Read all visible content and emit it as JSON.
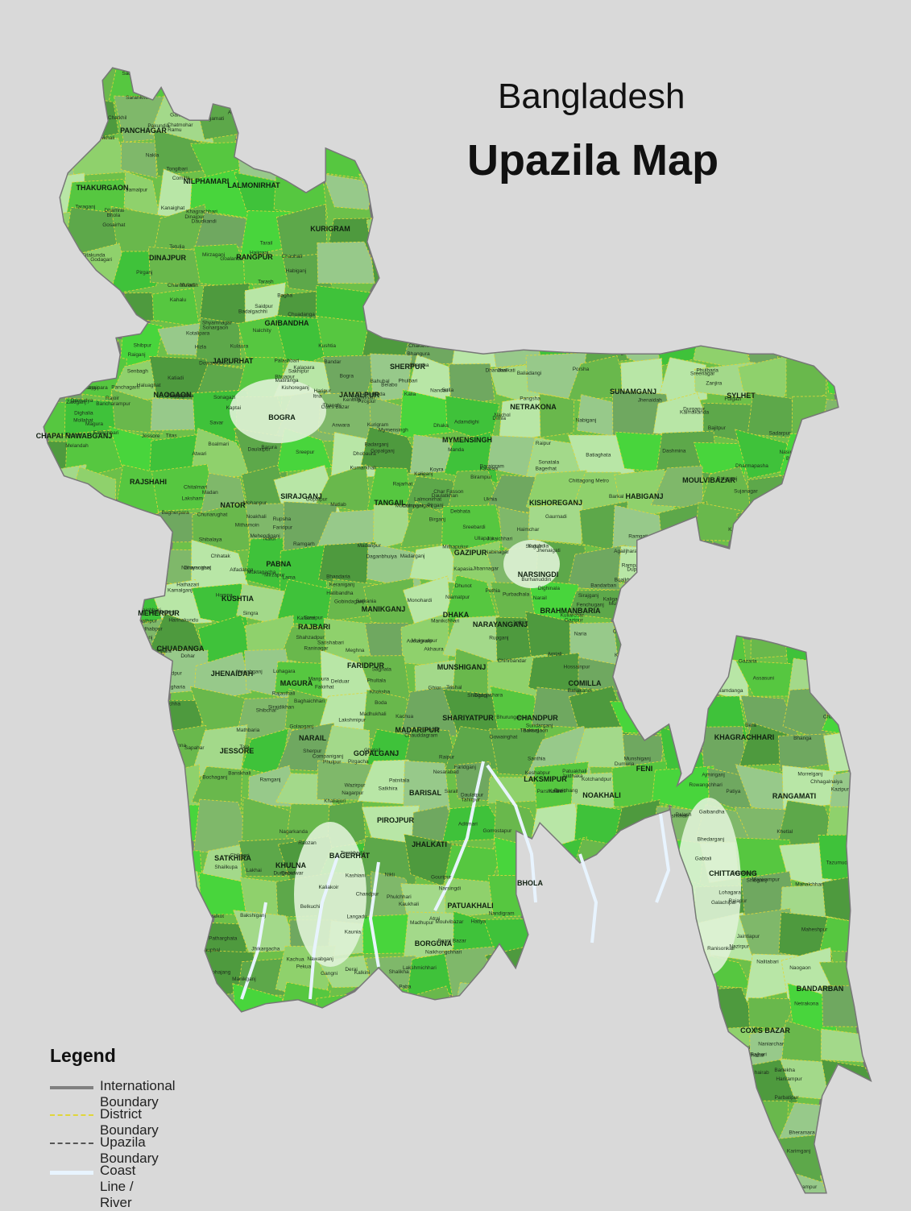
{
  "title": {
    "line1": "Bangladesh",
    "line2": "Upazila Map"
  },
  "legend": {
    "title": "Legend",
    "items": [
      {
        "label": "International Boundary",
        "color": "#808080"
      },
      {
        "label": "District Boundary",
        "color": "#e0d63a"
      },
      {
        "label": "Upazila Boundary",
        "color": "#555555"
      },
      {
        "label": "Coast Line / River",
        "color": "#e8f4ff"
      }
    ]
  },
  "colors": {
    "background": "#d9d9d9",
    "land_dark": "#4a9a3c",
    "land_mid": "#6cc04a",
    "land_light": "#a8e08a",
    "land_bright": "#39d33a",
    "coast": "#e8f4ff"
  },
  "districts": [
    "PANCHAGAR",
    "THAKURGAON",
    "DINAJPUR",
    "NILPHAMARI",
    "LALMONIRHAT",
    "KURIGRAM",
    "RANGPUR",
    "GAIBANDHA",
    "JAIPURHAT",
    "NAOGAON",
    "BOGRA",
    "JAMALPUR",
    "SHERPUR",
    "NETRAKONA",
    "SUNAMGANJ",
    "SYLHET",
    "CHAPAI NAWABGANJ",
    "RAJSHAHI",
    "NATOR",
    "SIRAJGANJ",
    "TANGAIL",
    "MYMENSINGH",
    "KISHOREGANJ",
    "HABIGANJ",
    "MOULVIBAZAR",
    "PABNA",
    "GAZIPUR",
    "NARSINGDI",
    "KUSHTIA",
    "MEHERPUR",
    "RAJBARI",
    "MANIKGANJ",
    "DHAKA",
    "NARAYANGANJ",
    "BRAHMANBARIA",
    "CHUADANGA",
    "JHENAIDAH",
    "MAGURA",
    "FARIDPUR",
    "MUNSHIGANJ",
    "COMILLA",
    "SHARIYATPUR",
    "CHANDPUR",
    "MADARIPUR",
    "NARAIL",
    "JESSORE",
    "GOPALGANJ",
    "KHAGRACHHARI",
    "FENI",
    "LAKSMIPUR",
    "NOAKHALI",
    "BARISAL",
    "PIROJPUR",
    "JHALKATI",
    "BAGERHAT",
    "SATKHIRA",
    "KHULNA",
    "RANGAMATI",
    "BHOLA",
    "PATUAKHALI",
    "BORGUNA",
    "CHITTAGONG",
    "BANDARBAN",
    "COX'S BAZAR"
  ],
  "upazilas": [
    "Tetulia",
    "Panchagarh",
    "Atwari",
    "Boda",
    "Debiganj",
    "Baliadangi",
    "Thakurgaon",
    "Ranisonkail",
    "Pirganj",
    "Haripur",
    "Birganj",
    "Kaharol",
    "Bochaganj",
    "Biral",
    "Chirirbandar",
    "Parbatipur",
    "Dinajpur",
    "Phulbari",
    "Birampur",
    "Nawabganj",
    "Domar",
    "Dimla",
    "Jaldhaka",
    "Nilphamari",
    "Saidpur",
    "Kishoreganj",
    "Hatibandha",
    "Kaliganj",
    "Aditmari",
    "Lalmonirhat",
    "Bhurungamari",
    "Nageshwari",
    "Phulbari",
    "Kurigram",
    "Rajarhat",
    "Ulipur",
    "Chilmari",
    "Rowmari",
    "Gangachara",
    "Rangpur",
    "Taraganj",
    "Badarganj",
    "Mithapukur",
    "Pirgacha",
    "Kaunia",
    "Pirganj",
    "Sundarganj",
    "Gaibandha",
    "Sadullapur",
    "Palashbari",
    "Gobindaganj",
    "Saghata",
    "Phulchhari",
    "Panchbibi",
    "Joypurhat",
    "Khetlal",
    "Akkelpur",
    "Kalai",
    "Dhamoirhat",
    "Sapahar",
    "Patnitala",
    "Porsha",
    "Niamatpur",
    "Naogaon",
    "Badalgachhi",
    "Mohadebpur",
    "Manda",
    "Raninagar",
    "Atrai",
    "Sonatala",
    "Shibganj",
    "Gabtali",
    "Kahalu",
    "Bogra",
    "Dhunot",
    "Sherpur",
    "Nandigram",
    "Adamdighi",
    "Dupchanchia",
    "Islampur",
    "Jamalpur",
    "Melandah",
    "Madarganj",
    "Sarishabari",
    "Bakshiganj",
    "Sreebardi",
    "Jhenaigati",
    "Nalitabari",
    "Nakla",
    "Haluaghat",
    "Dhobaura",
    "Phulpur",
    "Durgapur",
    "Kalmakanda",
    "Purbadhala",
    "Netrakona",
    "Atpara",
    "Kendua",
    "Madan",
    "Mohanganj",
    "Khaliajuri",
    "Dharmapasha",
    "Tahirpur",
    "Jamalganj",
    "Sunamganj",
    "Dowarabazar",
    "Chhatak",
    "Jagannathpur",
    "Derai",
    "Sulla",
    "Gowainghat",
    "Jaintiapur",
    "Kanaighat",
    "Zakiganj",
    "Companiganj",
    "Golapganj",
    "Beani Bazar",
    "Balaganj",
    "Fenchuganj",
    "Barlekha",
    "Kulaura",
    "Rajnagar",
    "Kamalganj",
    "Sreemangal",
    "Moulvibazar",
    "Nabiganj",
    "Baniyachang",
    "Ajmiriganj",
    "Habiganj",
    "Bahubal",
    "Chunarughat",
    "Madhabpur",
    "Lakhai",
    "Nasirnagar",
    "Sarail",
    "Brahmanbaria",
    "Kasba",
    "Bancharampur",
    "Nabinagar",
    "Akhaura",
    "Gomostapur",
    "Nachol",
    "Bholahat",
    "Shibganj",
    "Godagari",
    "Tanore",
    "Mohanpur",
    "Bagmara",
    "Paba",
    "Durgapur",
    "Puthia",
    "Charghat",
    "Bagha",
    "Boalia",
    "Nator",
    "Singra",
    "Gurudaspur",
    "Baraigram",
    "Lalpur",
    "Bagatipara",
    "Tarash",
    "Raiganj",
    "Ullapara",
    "Shahzadpur",
    "Belkuchi",
    "Kamarkhanda",
    "Sirajganj",
    "Kazipur",
    "Chauhali",
    "Bhuapur",
    "Gopalpur",
    "Ghatail",
    "Madhupur",
    "Dhanbari",
    "Kalihati",
    "Tangail",
    "Basail",
    "Sakhipur",
    "Mirzapur",
    "Delduar",
    "Nagarpur",
    "Phulbaria",
    "Trishal",
    "Bhaluka",
    "Gafargaon",
    "Mymensingh",
    "Muktagacha",
    "Ishwarganj",
    "Gouripur",
    "Nandail",
    "Hossainpur",
    "Karimganj",
    "Tarail",
    "Itna",
    "Mithamoin",
    "Austagram",
    "Nikli",
    "Bajitpur",
    "Kuliarchar",
    "Bhairab",
    "Pakundia",
    "Katiadi",
    "Kapasia",
    "Sreepur",
    "Kaliakoir",
    "Kaliganj",
    "Gazipur",
    "Palash",
    "Shibpur",
    "Belabo",
    "Monohardi",
    "Raipur",
    "Narsingdi",
    "Sujanagar",
    "Santhia",
    "Bera",
    "Chatmohar",
    "Bhangura",
    "Faridpur",
    "Atgharia",
    "Ishwardi",
    "Pabna",
    "Daulatpur",
    "Bheramara",
    "Mirpur",
    "Kushtia",
    "Kumarkhali",
    "Khoksha",
    "Gangni",
    "Meherpur",
    "Mujibnagar",
    "Alamdanga",
    "Chuadanga",
    "Damurhuda",
    "Jibannagar",
    "Harinakundu",
    "Shailkupa",
    "Jhenaidah",
    "Kotchandpur",
    "Maheshpur",
    "Kaliganj",
    "Magura",
    "Sreepur",
    "Mohammadpur",
    "Shalikha",
    "Pangsha",
    "Baliakandi",
    "Rajbari",
    "Goalanda",
    "Daulatpur",
    "Shibalaya",
    "Ghior",
    "Manikganj",
    "Saturia",
    "Singair",
    "Harirampur",
    "Dhamrai",
    "Savar",
    "Keraniganj",
    "Dohar",
    "Nawabganj",
    "Dhaka",
    "Rupganj",
    "Araihazar",
    "Sonargaon",
    "Bandar",
    "Narayanganj",
    "Sirajdikhan",
    "Lohajang",
    "Sreenagar",
    "Munshiganj",
    "Gazaria",
    "Tongibari",
    "Boalmari",
    "Alfadanga",
    "Madhukhali",
    "Nagarkanda",
    "Sadarpur",
    "Char Bhadrasan",
    "Bhanga",
    "Daudkandi",
    "Titas",
    "Homna",
    "Meghna",
    "Debidwar",
    "Muradnagar",
    "Burichang",
    "Chandina",
    "Comilla",
    "Barura",
    "Laksham",
    "Chauddagram",
    "Nangalkot",
    "Zanjira",
    "Naria",
    "Bhedarganj",
    "Gosairhat",
    "Damudya",
    "Matlab",
    "Kachua",
    "Chandpur",
    "Haimchar",
    "Faridganj",
    "Shahrasti",
    "Hajiganj",
    "Rajoir",
    "Madaripur",
    "Shibchar",
    "Kalkini",
    "Kalia",
    "Narail",
    "Lohagara",
    "Abhaynagar",
    "Jessore",
    "Bagherpara",
    "Chaugachha",
    "Jhikargacha",
    "Sharsha",
    "Keshabpur",
    "Manirampur",
    "Kotalipara",
    "Tungipara",
    "Gopalganj",
    "Muksudpur",
    "Kashiani",
    "Panchhari",
    "Dighinala",
    "Mahalchhari",
    "Khagrachhari",
    "Matiranga",
    "Ramgarh",
    "Manikchhari",
    "Lakshmichhari",
    "Fulgazi",
    "Parshuram",
    "Chhagalnaiya",
    "Feni",
    "Sonagazi",
    "Daganbhuiya",
    "Lakshmipur",
    "Ramganj",
    "Raipur",
    "Ramgati",
    "Begumganj",
    "Chatkhil",
    "Senbagh",
    "Noakhali",
    "Companiganj",
    "Hatiya",
    "Gaurnadi",
    "Agailjhara",
    "Babuganj",
    "Muladi",
    "Hizla",
    "Mehendiganj",
    "Banaripara",
    "Wazirpur",
    "Bakerganj",
    "Barisal",
    "Nazirpur",
    "Kawkhali",
    "Pirojpur",
    "Bhandaria",
    "Mathbaria",
    "Nesarabad",
    "Jhalkati",
    "Kathalia",
    "Rajapur",
    "Nalchity",
    "Mollahat",
    "Chitalmari",
    "Fakirhat",
    "Kachua",
    "Bagerhat",
    "Rampal",
    "Morrelganj",
    "Sarankhola",
    "Mongla",
    "Kalaroa",
    "Tala",
    "Satkhira",
    "Debhata",
    "Kaliganj",
    "Assasuni",
    "Shyamnagar",
    "Dighalia",
    "Rupsha",
    "Phultala",
    "Terakhada",
    "Batiaghata",
    "Dumuria",
    "Khulna",
    "Dacope",
    "Paikgachha",
    "Koyra",
    "Baghaichhari",
    "Langadu",
    "Barkal",
    "Juraichhari",
    "Naniarchar",
    "Rangamati",
    "Kaptai",
    "Belaichhari",
    "Rajasthali",
    "Kaukhali",
    "Daulatkhan",
    "Burhanuddin",
    "Tazumuddin",
    "Bhola",
    "Lalmohan",
    "Char Fasson",
    "Manpura",
    "Bauphal",
    "Dashmina",
    "Patuakhali",
    "Galachipa",
    "Mirzaganj",
    "Kalapara",
    "Betagi",
    "Bamna",
    "Patharghata",
    "Borguna",
    "Amtali",
    "Mirsharai",
    "Sitakunda",
    "Fatikchhari",
    "Hathazari",
    "Sandwip",
    "Raozan",
    "Rangunia",
    "Boalkhali",
    "Patiya",
    "Chandanaish",
    "Anwara",
    "Satkania",
    "Lohagara",
    "Banskhali",
    "Chittagong Metro",
    "Bandarban",
    "Rowangchhari",
    "Ruma",
    "Thanchi",
    "Lama",
    "Alikadam",
    "Naikhongchhari",
    "Chakaria",
    "Kutubdia",
    "Moheshkhali",
    "Ramu",
    "Cox's Bazar",
    "Ukhia",
    "Teknaf",
    "Pekua"
  ]
}
